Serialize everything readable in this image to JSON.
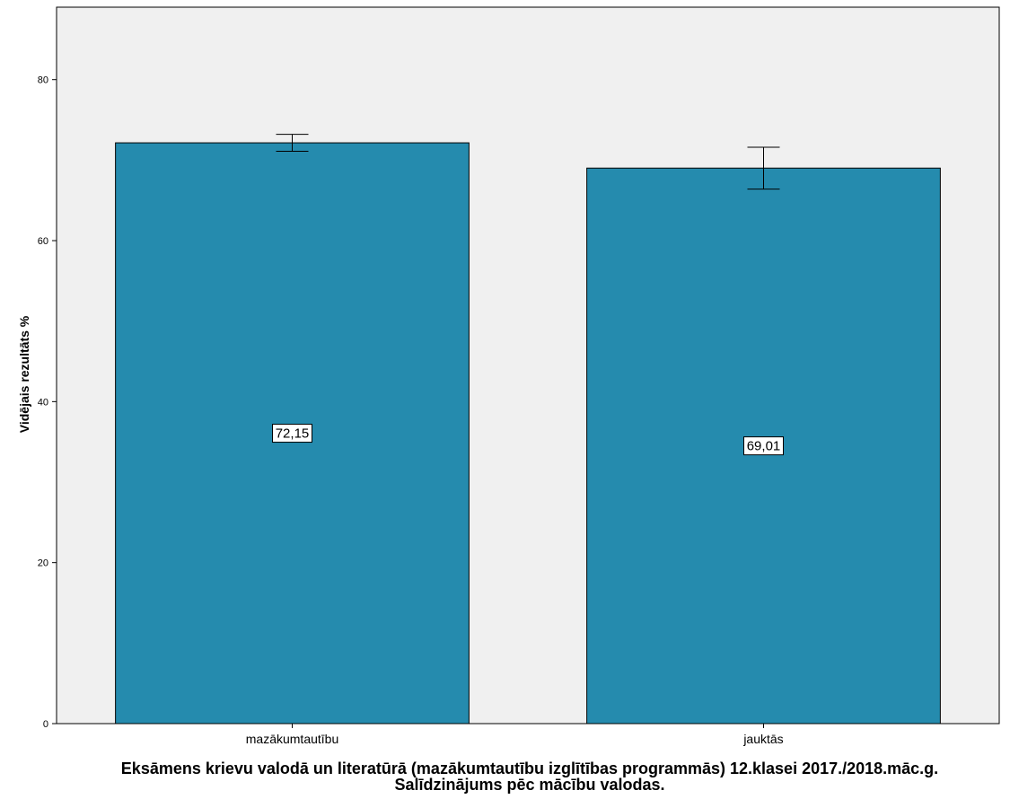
{
  "chart_data": {
    "type": "bar",
    "title": "Eksāmens krievu valodā un literatūrā (mazākumtautību izglītības programmās) 12.klasei 2017./2018.māc.g.",
    "subtitle": "Salīdzinājums pēc mācību valodas.",
    "xlabel": "",
    "ylabel": "Vidējais rezultāts %",
    "categories": [
      "mazākumtautību",
      "jauktās"
    ],
    "values": [
      72.15,
      69.01
    ],
    "data_labels": [
      "72,15",
      "69,01"
    ],
    "error_bars": [
      {
        "low": 71.1,
        "high": 73.2
      },
      {
        "low": 66.4,
        "high": 71.6
      }
    ],
    "yticks": [
      0,
      20,
      40,
      60,
      80
    ],
    "ylim": [
      0,
      89
    ],
    "grid": false,
    "colors": {
      "bar": "#258bae",
      "plot_background": "#f0f0f0",
      "axis": "#000000"
    }
  }
}
